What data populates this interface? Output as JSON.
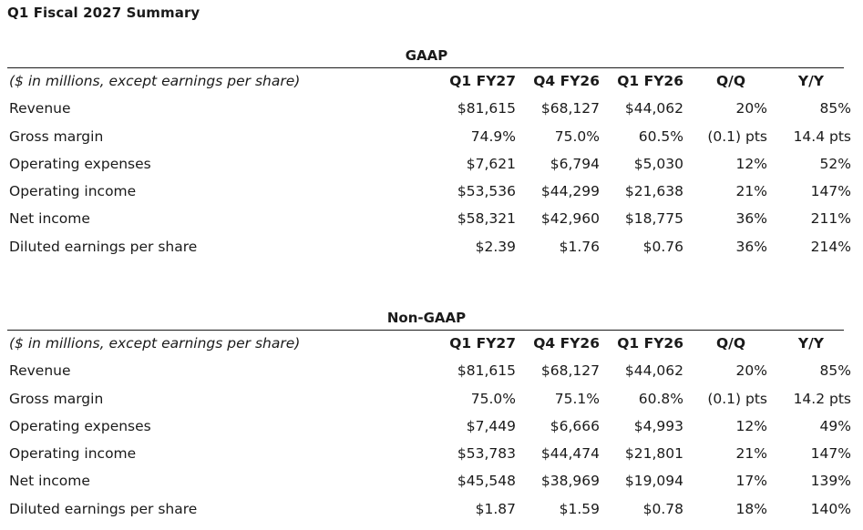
{
  "title": "Q1 Fiscal 2027 Summary",
  "sections": [
    {
      "name": "GAAP",
      "header": {
        "label": "($ in millions, except earnings per share)",
        "cols": [
          "Q1 FY27",
          "Q4 FY26",
          "Q1 FY26",
          "Q/Q",
          "Y/Y"
        ]
      },
      "rows": [
        {
          "label": "Revenue",
          "values": [
            "$81,615",
            "$68,127",
            "$44,062",
            "20%",
            "85%"
          ]
        },
        {
          "label": "Gross margin",
          "values": [
            "74.9%",
            "75.0%",
            "60.5%",
            "(0.1) pts",
            "14.4 pts"
          ]
        },
        {
          "label": "Operating expenses",
          "values": [
            "$7,621",
            "$6,794",
            "$5,030",
            "12%",
            "52%"
          ]
        },
        {
          "label": "Operating income",
          "values": [
            "$53,536",
            "$44,299",
            "$21,638",
            "21%",
            "147%"
          ]
        },
        {
          "label": "Net income",
          "values": [
            "$58,321",
            "$42,960",
            "$18,775",
            "36%",
            "211%"
          ]
        },
        {
          "label": "Diluted earnings per share",
          "values": [
            "$2.39",
            "$1.76",
            "$0.76",
            "36%",
            "214%"
          ]
        }
      ]
    },
    {
      "name": "Non-GAAP",
      "header": {
        "label": "($ in millions, except earnings per share)",
        "cols": [
          "Q1 FY27",
          "Q4 FY26",
          "Q1 FY26",
          "Q/Q",
          "Y/Y"
        ]
      },
      "rows": [
        {
          "label": "Revenue",
          "values": [
            "$81,615",
            "$68,127",
            "$44,062",
            "20%",
            "85%"
          ]
        },
        {
          "label": "Gross margin",
          "values": [
            "75.0%",
            "75.1%",
            "60.8%",
            "(0.1) pts",
            "14.2 pts"
          ]
        },
        {
          "label": "Operating expenses",
          "values": [
            "$7,449",
            "$6,666",
            "$4,993",
            "12%",
            "49%"
          ]
        },
        {
          "label": "Operating income",
          "values": [
            "$53,783",
            "$44,474",
            "$21,801",
            "21%",
            "147%"
          ]
        },
        {
          "label": "Net income",
          "values": [
            "$45,548",
            "$38,969",
            "$19,094",
            "17%",
            "139%"
          ]
        },
        {
          "label": "Diluted earnings per share",
          "values": [
            "$1.87",
            "$1.59",
            "$0.78",
            "18%",
            "140%"
          ]
        }
      ]
    }
  ]
}
